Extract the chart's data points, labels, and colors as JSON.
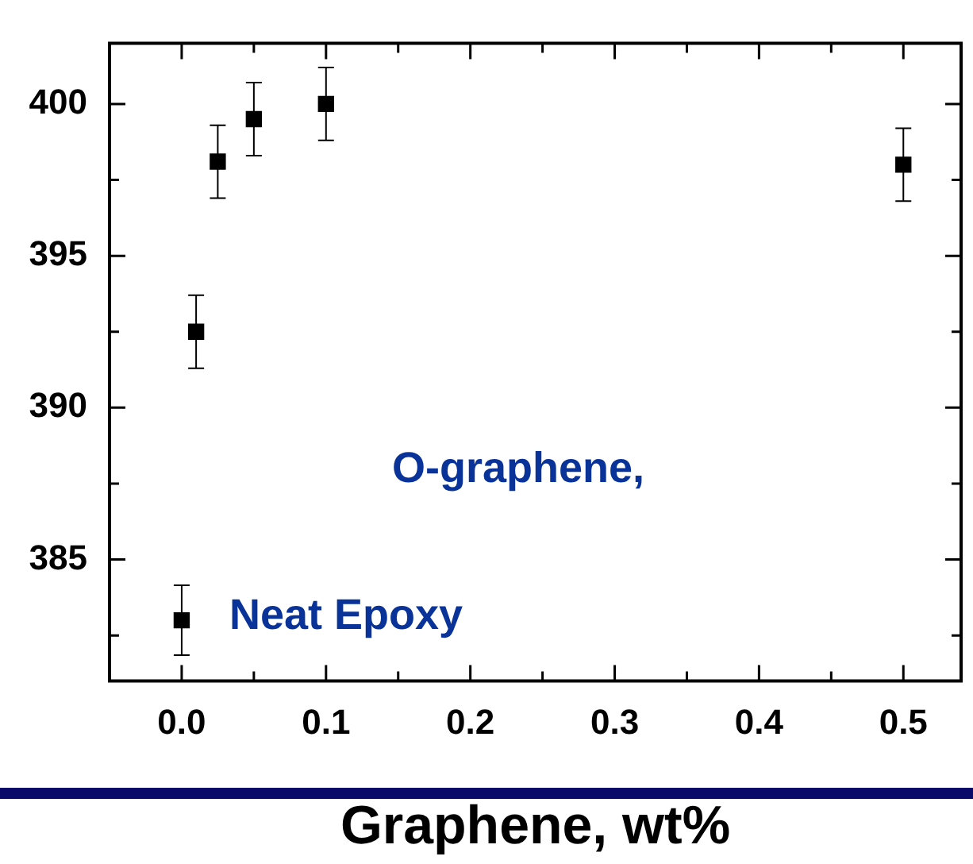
{
  "chart_data": {
    "type": "scatter",
    "xlabel": "Graphene, wt%",
    "x": [
      0,
      0.01,
      0.025,
      0.05,
      0.1,
      0.5
    ],
    "values": [
      383.0,
      392.5,
      398.1,
      399.5,
      400.0,
      398.0
    ],
    "errors": [
      1.15,
      1.2,
      1.2,
      1.2,
      1.2,
      1.2
    ],
    "color": "#000000",
    "marker": "square",
    "xlim": [
      -0.05,
      0.54
    ],
    "xticks": [
      {
        "value": 0,
        "label": "0.0"
      },
      {
        "value": 0.05,
        "label": null
      },
      {
        "value": 0.1,
        "label": "0.1"
      },
      {
        "value": 0.15,
        "label": null
      },
      {
        "value": 0.2,
        "label": "0.2"
      },
      {
        "value": 0.25,
        "label": null
      },
      {
        "value": 0.3,
        "label": "0.3"
      },
      {
        "value": 0.35,
        "label": null
      },
      {
        "value": 0.4,
        "label": "0.4"
      },
      {
        "value": 0.45,
        "label": null
      },
      {
        "value": 0.5,
        "label": "0.5"
      }
    ],
    "ylim": [
      381,
      402
    ],
    "yticks": [
      {
        "value": 382.5,
        "label": null
      },
      385,
      {
        "value": 387.5,
        "label": null
      },
      390,
      {
        "value": 392.5,
        "label": null
      },
      395,
      {
        "value": 397.5,
        "label": null
      },
      400
    ],
    "annotations": [
      {
        "text": "Neat Epoxy",
        "x": 0,
        "y": 383.0
      },
      "O-graphene,"
    ],
    "legend": false,
    "grid": false
  }
}
